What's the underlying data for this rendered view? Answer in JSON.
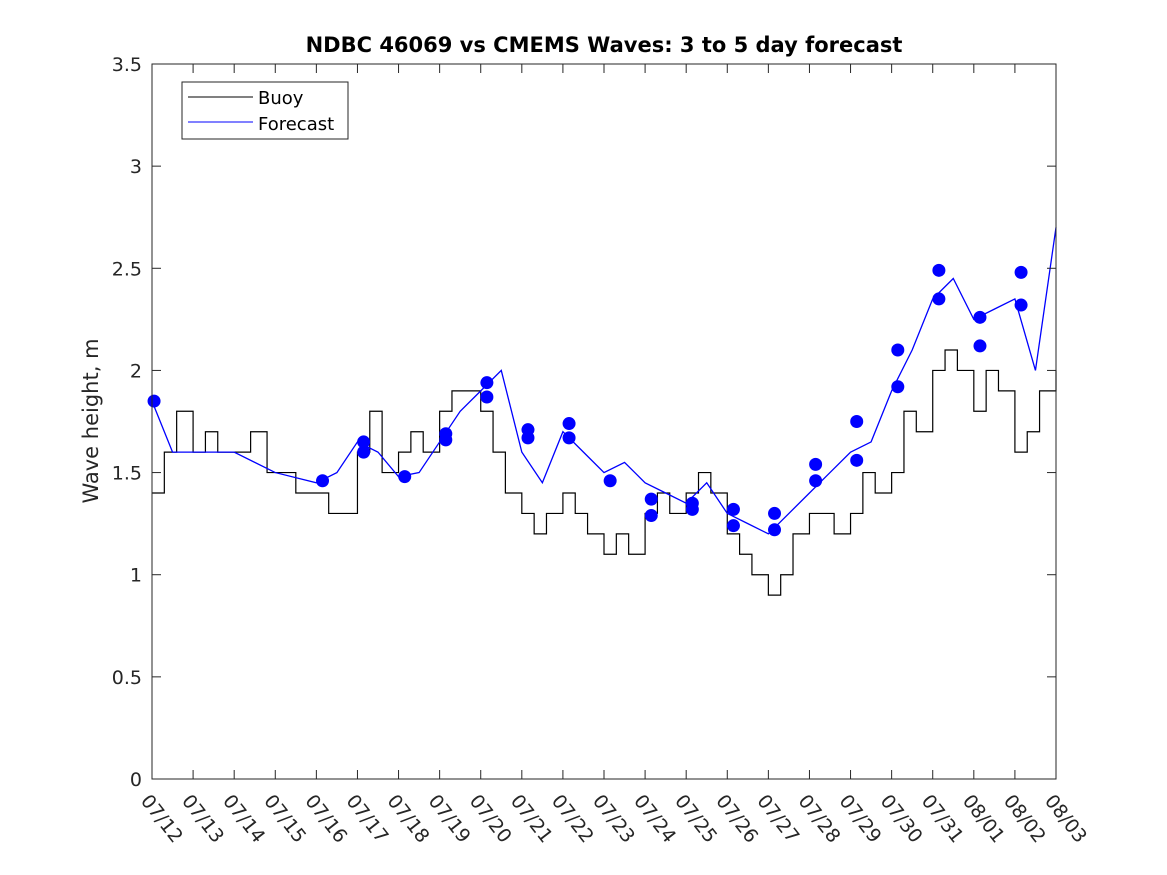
{
  "chart_data": {
    "type": "line",
    "title": "NDBC 46069 vs CMEMS Waves: 3 to 5 day forecast",
    "xlabel": "",
    "ylabel": "Wave height, m",
    "xlim": [
      "07/12",
      "08/03"
    ],
    "ylim": [
      0,
      3.5
    ],
    "yticks": [
      "0",
      "0.5",
      "1",
      "1.5",
      "2",
      "2.5",
      "3",
      "3.5"
    ],
    "xticks": [
      "07/12",
      "07/13",
      "07/14",
      "07/15",
      "07/16",
      "07/17",
      "07/18",
      "07/19",
      "07/20",
      "07/21",
      "07/22",
      "07/23",
      "07/24",
      "07/25",
      "07/26",
      "07/27",
      "07/28",
      "07/29",
      "07/30",
      "07/31",
      "08/01",
      "08/02",
      "08/03"
    ],
    "grid": false,
    "legend": {
      "position": "top-left",
      "entries": [
        "Buoy",
        "Forecast"
      ]
    },
    "colors": {
      "buoy": "#000000",
      "forecast": "#0000ff",
      "points": "#0000ff"
    },
    "series": [
      {
        "name": "Buoy",
        "x": [
          "07/12",
          "07/12.3",
          "07/12.6",
          "07/13",
          "07/13.3",
          "07/13.6",
          "07/14",
          "07/14.4",
          "07/14.8",
          "07/15",
          "07/15.5",
          "07/16",
          "07/16.3",
          "07/16.6",
          "07/17",
          "07/17.3",
          "07/17.6",
          "07/18",
          "07/18.3",
          "07/18.6",
          "07/19",
          "07/19.3",
          "07/19.6",
          "07/20",
          "07/20.3",
          "07/20.6",
          "07/21",
          "07/21.3",
          "07/21.6",
          "07/22",
          "07/22.3",
          "07/22.6",
          "07/23",
          "07/23.3",
          "07/23.6",
          "07/24",
          "07/24.3",
          "07/24.6",
          "07/25",
          "07/25.3",
          "07/25.6",
          "07/26",
          "07/26.3",
          "07/26.6",
          "07/27",
          "07/27.3",
          "07/27.6",
          "07/28",
          "07/28.3",
          "07/28.6",
          "07/29",
          "07/29.3",
          "07/29.6",
          "07/30",
          "07/30.3",
          "07/30.6",
          "07/31",
          "07/31.3",
          "07/31.6",
          "08/01",
          "08/01.3",
          "08/01.6",
          "08/02",
          "08/02.3",
          "08/02.6",
          "08/03"
        ],
        "values": [
          1.4,
          1.6,
          1.8,
          1.6,
          1.7,
          1.6,
          1.6,
          1.7,
          1.5,
          1.5,
          1.4,
          1.4,
          1.3,
          1.3,
          1.6,
          1.8,
          1.5,
          1.6,
          1.7,
          1.6,
          1.8,
          1.9,
          1.9,
          1.8,
          1.6,
          1.4,
          1.3,
          1.2,
          1.3,
          1.4,
          1.3,
          1.2,
          1.1,
          1.2,
          1.1,
          1.3,
          1.4,
          1.3,
          1.4,
          1.5,
          1.4,
          1.2,
          1.1,
          1.0,
          0.9,
          1.0,
          1.2,
          1.3,
          1.3,
          1.2,
          1.3,
          1.5,
          1.4,
          1.5,
          1.8,
          1.7,
          2.0,
          2.1,
          2.0,
          1.8,
          2.0,
          1.9,
          1.6,
          1.7,
          1.9,
          2.0
        ]
      },
      {
        "name": "Forecast",
        "x": [
          "07/12",
          "07/12.5",
          "07/13",
          "07/14",
          "07/15",
          "07/16",
          "07/16.5",
          "07/17",
          "07/17.5",
          "07/18",
          "07/18.5",
          "07/19",
          "07/19.5",
          "07/20",
          "07/20.5",
          "07/21",
          "07/21.5",
          "07/22",
          "07/22.5",
          "07/23",
          "07/23.5",
          "07/24",
          "07/24.5",
          "07/25",
          "07/25.5",
          "07/26",
          "07/26.5",
          "07/27",
          "07/27.5",
          "07/28",
          "07/28.5",
          "07/29",
          "07/29.5",
          "07/30",
          "07/30.5",
          "07/31",
          "07/31.5",
          "08/01",
          "08/01.5",
          "08/02",
          "08/02.5",
          "08/03"
        ],
        "values": [
          1.85,
          1.6,
          1.6,
          1.6,
          1.5,
          1.45,
          1.5,
          1.65,
          1.6,
          1.48,
          1.5,
          1.65,
          1.8,
          1.9,
          2.0,
          1.6,
          1.45,
          1.7,
          1.6,
          1.5,
          1.55,
          1.45,
          1.4,
          1.35,
          1.45,
          1.3,
          1.25,
          1.2,
          1.3,
          1.4,
          1.5,
          1.6,
          1.65,
          1.9,
          2.1,
          2.35,
          2.45,
          2.25,
          2.3,
          2.35,
          2.0,
          2.7
        ]
      }
    ],
    "points": {
      "x": [
        "07/12.05",
        "07/16.15",
        "07/17.15",
        "07/17.15",
        "07/18.15",
        "07/19.15",
        "07/19.15",
        "07/20.15",
        "07/20.15",
        "07/21.15",
        "07/21.15",
        "07/22.15",
        "07/22.15",
        "07/23.15",
        "07/24.15",
        "07/24.15",
        "07/25.15",
        "07/25.15",
        "07/26.15",
        "07/26.15",
        "07/27.15",
        "07/27.15",
        "07/28.15",
        "07/28.15",
        "07/29.15",
        "07/29.15",
        "07/30.15",
        "07/30.15",
        "07/31.15",
        "07/31.15",
        "08/01.15",
        "08/01.15",
        "08/02.15",
        "08/02.15"
      ],
      "values": [
        1.85,
        1.46,
        1.65,
        1.6,
        1.48,
        1.69,
        1.66,
        1.94,
        1.87,
        1.71,
        1.67,
        1.74,
        1.67,
        1.46,
        1.37,
        1.29,
        1.35,
        1.32,
        1.32,
        1.24,
        1.3,
        1.22,
        1.54,
        1.46,
        1.75,
        1.56,
        2.1,
        1.92,
        2.49,
        2.35,
        2.26,
        2.12,
        2.48,
        2.32
      ]
    }
  }
}
